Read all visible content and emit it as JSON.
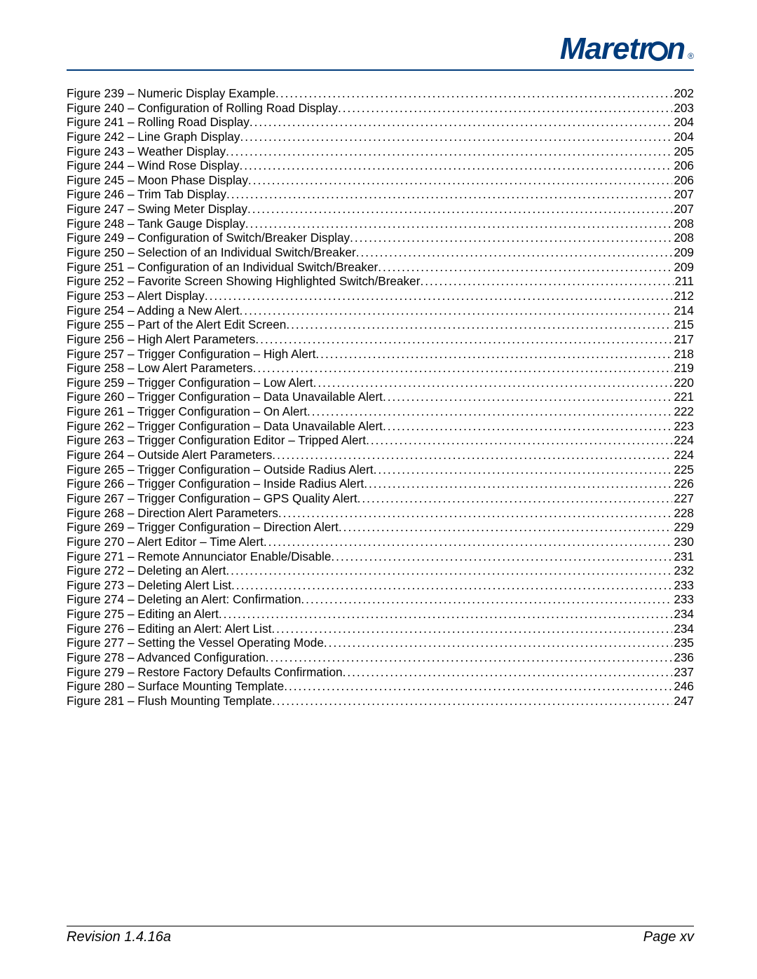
{
  "header": {
    "logo_text_left": "Maretr",
    "logo_text_right": "n",
    "logo_registered": "®"
  },
  "toc": {
    "entries": [
      {
        "label": "Figure 239 – Numeric Display Example",
        "page": "202"
      },
      {
        "label": "Figure 240 – Configuration of Rolling Road Display ",
        "page": "203"
      },
      {
        "label": "Figure 241 – Rolling Road Display",
        "page": "204"
      },
      {
        "label": "Figure 242 – Line Graph Display ",
        "page": "204"
      },
      {
        "label": "Figure 243 – Weather Display",
        "page": "205"
      },
      {
        "label": "Figure 244 – Wind Rose Display",
        "page": "206"
      },
      {
        "label": "Figure 245 – Moon Phase Display ",
        "page": "206"
      },
      {
        "label": "Figure 246 – Trim Tab Display",
        "page": "207"
      },
      {
        "label": "Figure 247 – Swing Meter Display ",
        "page": "207"
      },
      {
        "label": "Figure 248 – Tank Gauge Display ",
        "page": "208"
      },
      {
        "label": "Figure 249 – Configuration of Switch/Breaker Display",
        "page": "208"
      },
      {
        "label": "Figure 250 – Selection of an Individual Switch/Breaker",
        "page": "209"
      },
      {
        "label": "Figure 251 – Configuration of an Individual Switch/Breaker ",
        "page": "209"
      },
      {
        "label": "Figure 252 – Favorite Screen Showing Highlighted Switch/Breaker",
        "page": "211"
      },
      {
        "label": "Figure 253 – Alert Display",
        "page": "212"
      },
      {
        "label": "Figure 254 – Adding a New Alert ",
        "page": "214"
      },
      {
        "label": "Figure 255 – Part of the Alert Edit Screen ",
        "page": "215"
      },
      {
        "label": "Figure 256 – High Alert Parameters",
        "page": "217"
      },
      {
        "label": "Figure 257 – Trigger Configuration – High Alert",
        "page": "218"
      },
      {
        "label": "Figure 258 – Low Alert Parameters ",
        "page": "219"
      },
      {
        "label": "Figure 259 – Trigger Configuration – Low Alert ",
        "page": "220"
      },
      {
        "label": "Figure 260 – Trigger Configuration – Data Unavailable Alert",
        "page": "221"
      },
      {
        "label": "Figure 261 – Trigger Configuration – On Alert ",
        "page": "222"
      },
      {
        "label": "Figure 262 – Trigger Configuration – Data Unavailable Alert",
        "page": "223"
      },
      {
        "label": "Figure 263 – Trigger Configuration Editor – Tripped Alert ",
        "page": "224"
      },
      {
        "label": "Figure 264 – Outside Alert Parameters",
        "page": "224"
      },
      {
        "label": "Figure 265 – Trigger Configuration – Outside Radius Alert ",
        "page": "225"
      },
      {
        "label": "Figure 266 – Trigger Configuration – Inside Radius Alert ",
        "page": "226"
      },
      {
        "label": "Figure 267 – Trigger Configuration – GPS Quality Alert ",
        "page": "227"
      },
      {
        "label": "Figure 268 – Direction Alert Parameters",
        "page": "228"
      },
      {
        "label": "Figure 269 – Trigger Configuration – Direction Alert",
        "page": "229"
      },
      {
        "label": "Figure 270 – Alert Editor – Time Alert",
        "page": "230"
      },
      {
        "label": "Figure 271 – Remote Annunciator Enable/Disable ",
        "page": "231"
      },
      {
        "label": "Figure 272 – Deleting an Alert ",
        "page": "232"
      },
      {
        "label": "Figure 273 – Deleting Alert List",
        "page": "233"
      },
      {
        "label": "Figure 274 – Deleting an Alert: Confirmation ",
        "page": "233"
      },
      {
        "label": "Figure 275 – Editing an Alert",
        "page": "234"
      },
      {
        "label": "Figure 276 – Editing an Alert: Alert List",
        "page": "234"
      },
      {
        "label": "Figure 277 – Setting the Vessel Operating Mode ",
        "page": "235"
      },
      {
        "label": "Figure 278 – Advanced Configuration",
        "page": "236"
      },
      {
        "label": "Figure 279 – Restore Factory Defaults Confirmation ",
        "page": "237"
      },
      {
        "label": "Figure 280 – Surface Mounting Template ",
        "page": "246"
      },
      {
        "label": "Figure 281 – Flush Mounting Template ",
        "page": "247"
      }
    ]
  },
  "footer": {
    "revision": "Revision 1.4.16a",
    "page": "Page xv"
  },
  "colors": {
    "brand": "#003b7b",
    "text": "#000000",
    "background": "#ffffff"
  }
}
